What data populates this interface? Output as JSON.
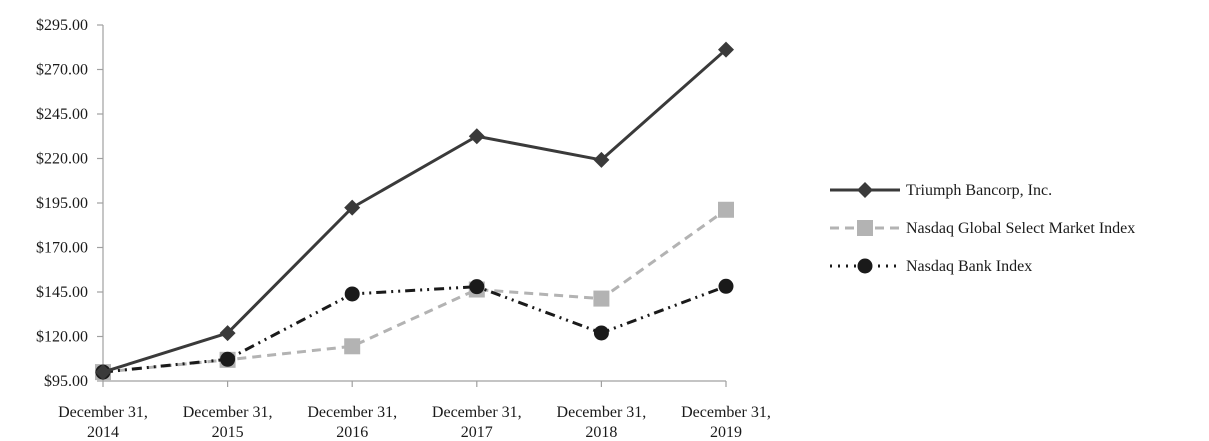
{
  "chart_data": {
    "type": "line",
    "title": "",
    "xlabel": "",
    "ylabel": "",
    "categories": [
      [
        "December 31,",
        "2014"
      ],
      [
        "December 31,",
        "2015"
      ],
      [
        "December 31,",
        "2016"
      ],
      [
        "December 31,",
        "2017"
      ],
      [
        "December 31,",
        "2018"
      ],
      [
        "December 31,",
        "2019"
      ]
    ],
    "y_ticks": [
      "$95.00",
      "$120.00",
      "$145.00",
      "$170.00",
      "$195.00",
      "$220.00",
      "$245.00",
      "$270.00",
      "$295.00"
    ],
    "ylim": [
      95,
      295
    ],
    "grid": false,
    "legend_position": "right",
    "series": [
      {
        "name": "Triumph Bancorp, Inc.",
        "values": [
          100.0,
          121.9,
          192.4,
          232.5,
          219.2,
          281.2
        ],
        "color": "#3a3a3a",
        "line_style": "solid",
        "marker": "diamond"
      },
      {
        "name": "Nasdaq Global Select Market Index",
        "values": [
          100.0,
          106.9,
          114.5,
          146.4,
          141.3,
          191.2
        ],
        "color": "#b3b3b3",
        "line_style": "dashed",
        "marker": "square"
      },
      {
        "name": "Nasdaq Bank Index",
        "values": [
          100.0,
          107.2,
          143.9,
          148.0,
          122.0,
          148.2
        ],
        "color": "#1a1a1a",
        "line_style": "dash-dot-dot",
        "marker": "circle"
      }
    ]
  }
}
